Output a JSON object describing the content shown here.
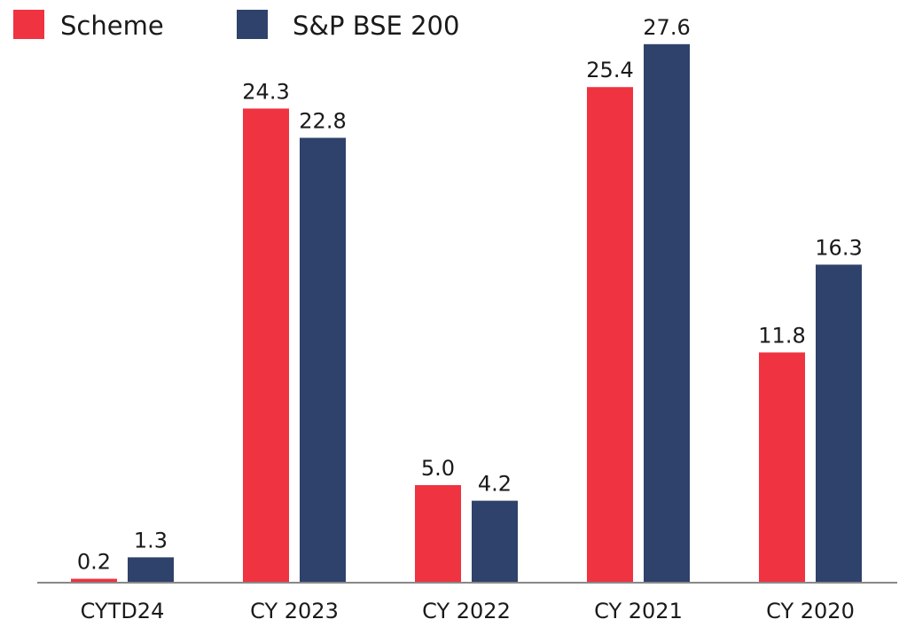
{
  "chart_data": {
    "type": "bar",
    "categories": [
      "CYTD24",
      "CY 2023",
      "CY 2022",
      "CY 2021",
      "CY 2020"
    ],
    "series": [
      {
        "name": "Scheme",
        "color": "#ef3340",
        "values": [
          0.2,
          24.3,
          5.0,
          25.4,
          11.8
        ],
        "labels": [
          "0.2",
          "24.3",
          "5.0",
          "25.4",
          "11.8"
        ]
      },
      {
        "name": "S&P BSE 200",
        "color": "#2e426b",
        "values": [
          1.3,
          22.8,
          4.2,
          27.6,
          16.3
        ],
        "labels": [
          "1.3",
          "22.8",
          "4.2",
          "27.6",
          "16.3"
        ]
      }
    ],
    "ylim": [
      0,
      28.5
    ],
    "grid": false,
    "legend_position": "top-left",
    "axis_color": "#888888"
  }
}
